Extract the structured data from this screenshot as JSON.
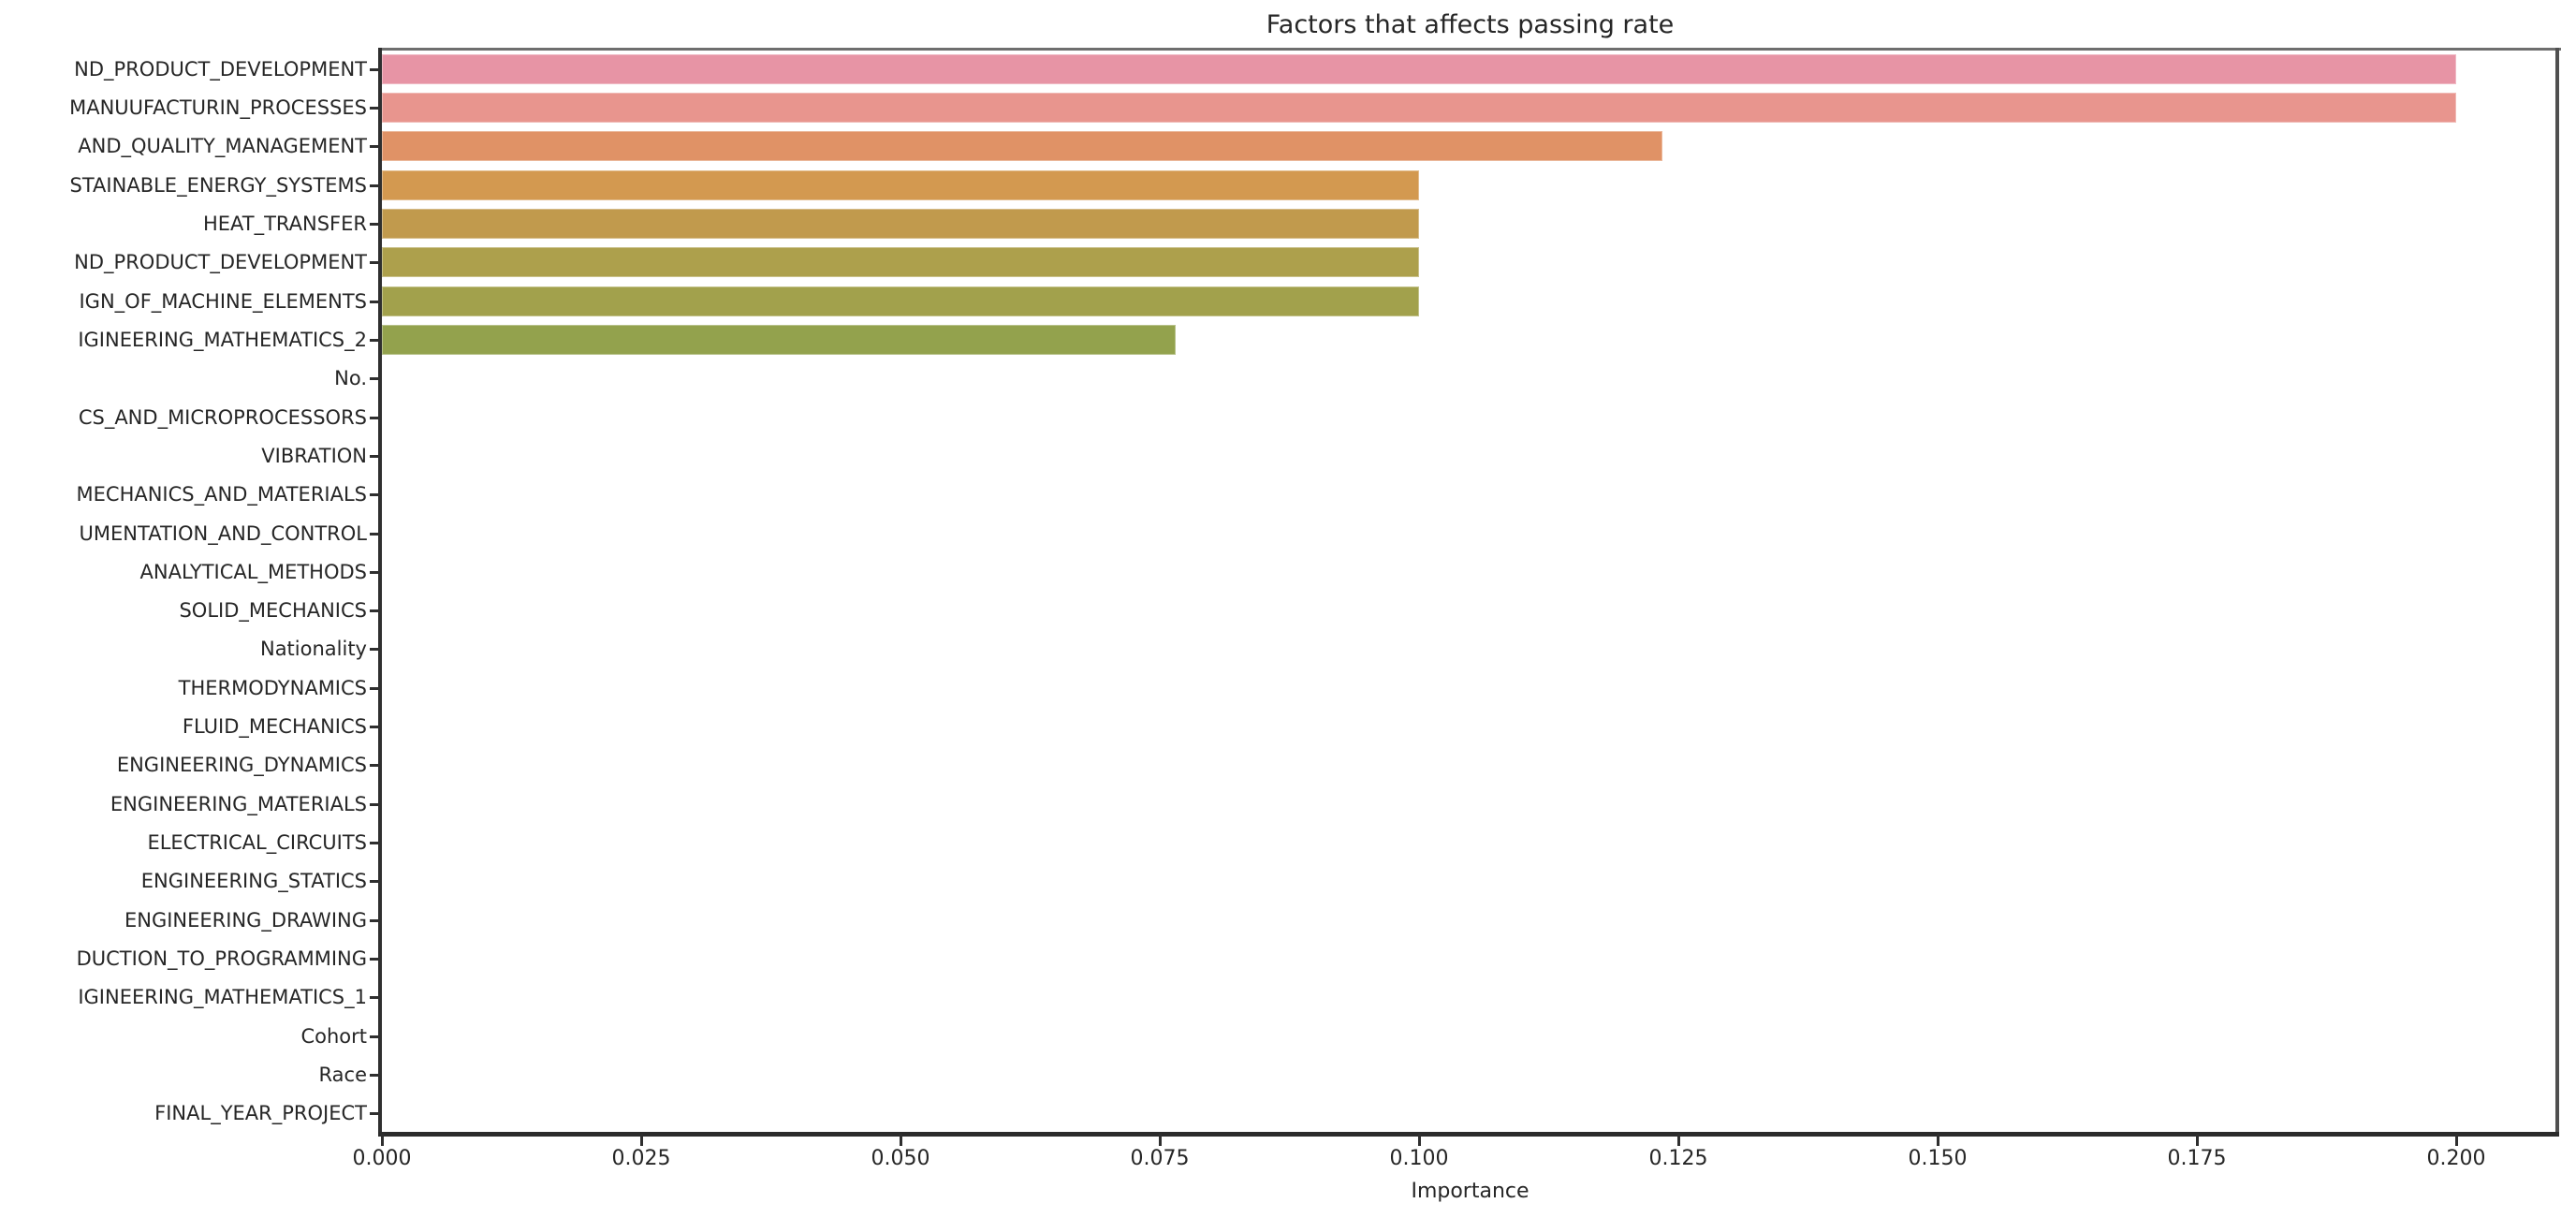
{
  "chart_data": {
    "type": "bar",
    "orientation": "horizontal",
    "title": "Factors that affects passing rate",
    "xlabel": "Importance",
    "ylabel": "",
    "grid": false,
    "legend": null,
    "xlim": [
      0,
      0.21
    ],
    "xticks": [
      "0.000",
      "0.025",
      "0.050",
      "0.075",
      "0.100",
      "0.125",
      "0.150",
      "0.175",
      "0.200"
    ],
    "categories": [
      "ND_PRODUCT_DEVELOPMENT",
      "MANUUFACTURIN_PROCESSES",
      "AND_QUALITY_MANAGEMENT",
      "STAINABLE_ENERGY_SYSTEMS",
      "HEAT_TRANSFER",
      "ND_PRODUCT_DEVELOPMENT",
      "IGN_OF_MACHINE_ELEMENTS",
      "IGINEERING_MATHEMATICS_2",
      "No.",
      "CS_AND_MICROPROCESSORS",
      "VIBRATION",
      "MECHANICS_AND_MATERIALS",
      "UMENTATION_AND_CONTROL",
      "ANALYTICAL_METHODS",
      "SOLID_MECHANICS",
      "Nationality",
      "THERMODYNAMICS",
      "FLUID_MECHANICS",
      "ENGINEERING_DYNAMICS",
      "ENGINEERING_MATERIALS",
      "ELECTRICAL_CIRCUITS",
      "ENGINEERING_STATICS",
      "ENGINEERING_DRAWING",
      "DUCTION_TO_PROGRAMMING",
      "IGINEERING_MATHEMATICS_1",
      "Cohort",
      "Race",
      "FINAL_YEAR_PROJECT"
    ],
    "values": [
      0.2,
      0.2,
      0.1235,
      0.1,
      0.1,
      0.1,
      0.1,
      0.0765,
      0,
      0,
      0,
      0,
      0,
      0,
      0,
      0,
      0,
      0,
      0,
      0,
      0,
      0,
      0,
      0,
      0,
      0,
      0,
      0
    ],
    "bar_colors": [
      "#e794a5",
      "#e8958e",
      "#e09266",
      "#d39950",
      "#c19a4d",
      "#ada04c",
      "#a2a14c",
      "#93a24d"
    ],
    "text_color": "#262626",
    "background_color": "#ffffff"
  }
}
